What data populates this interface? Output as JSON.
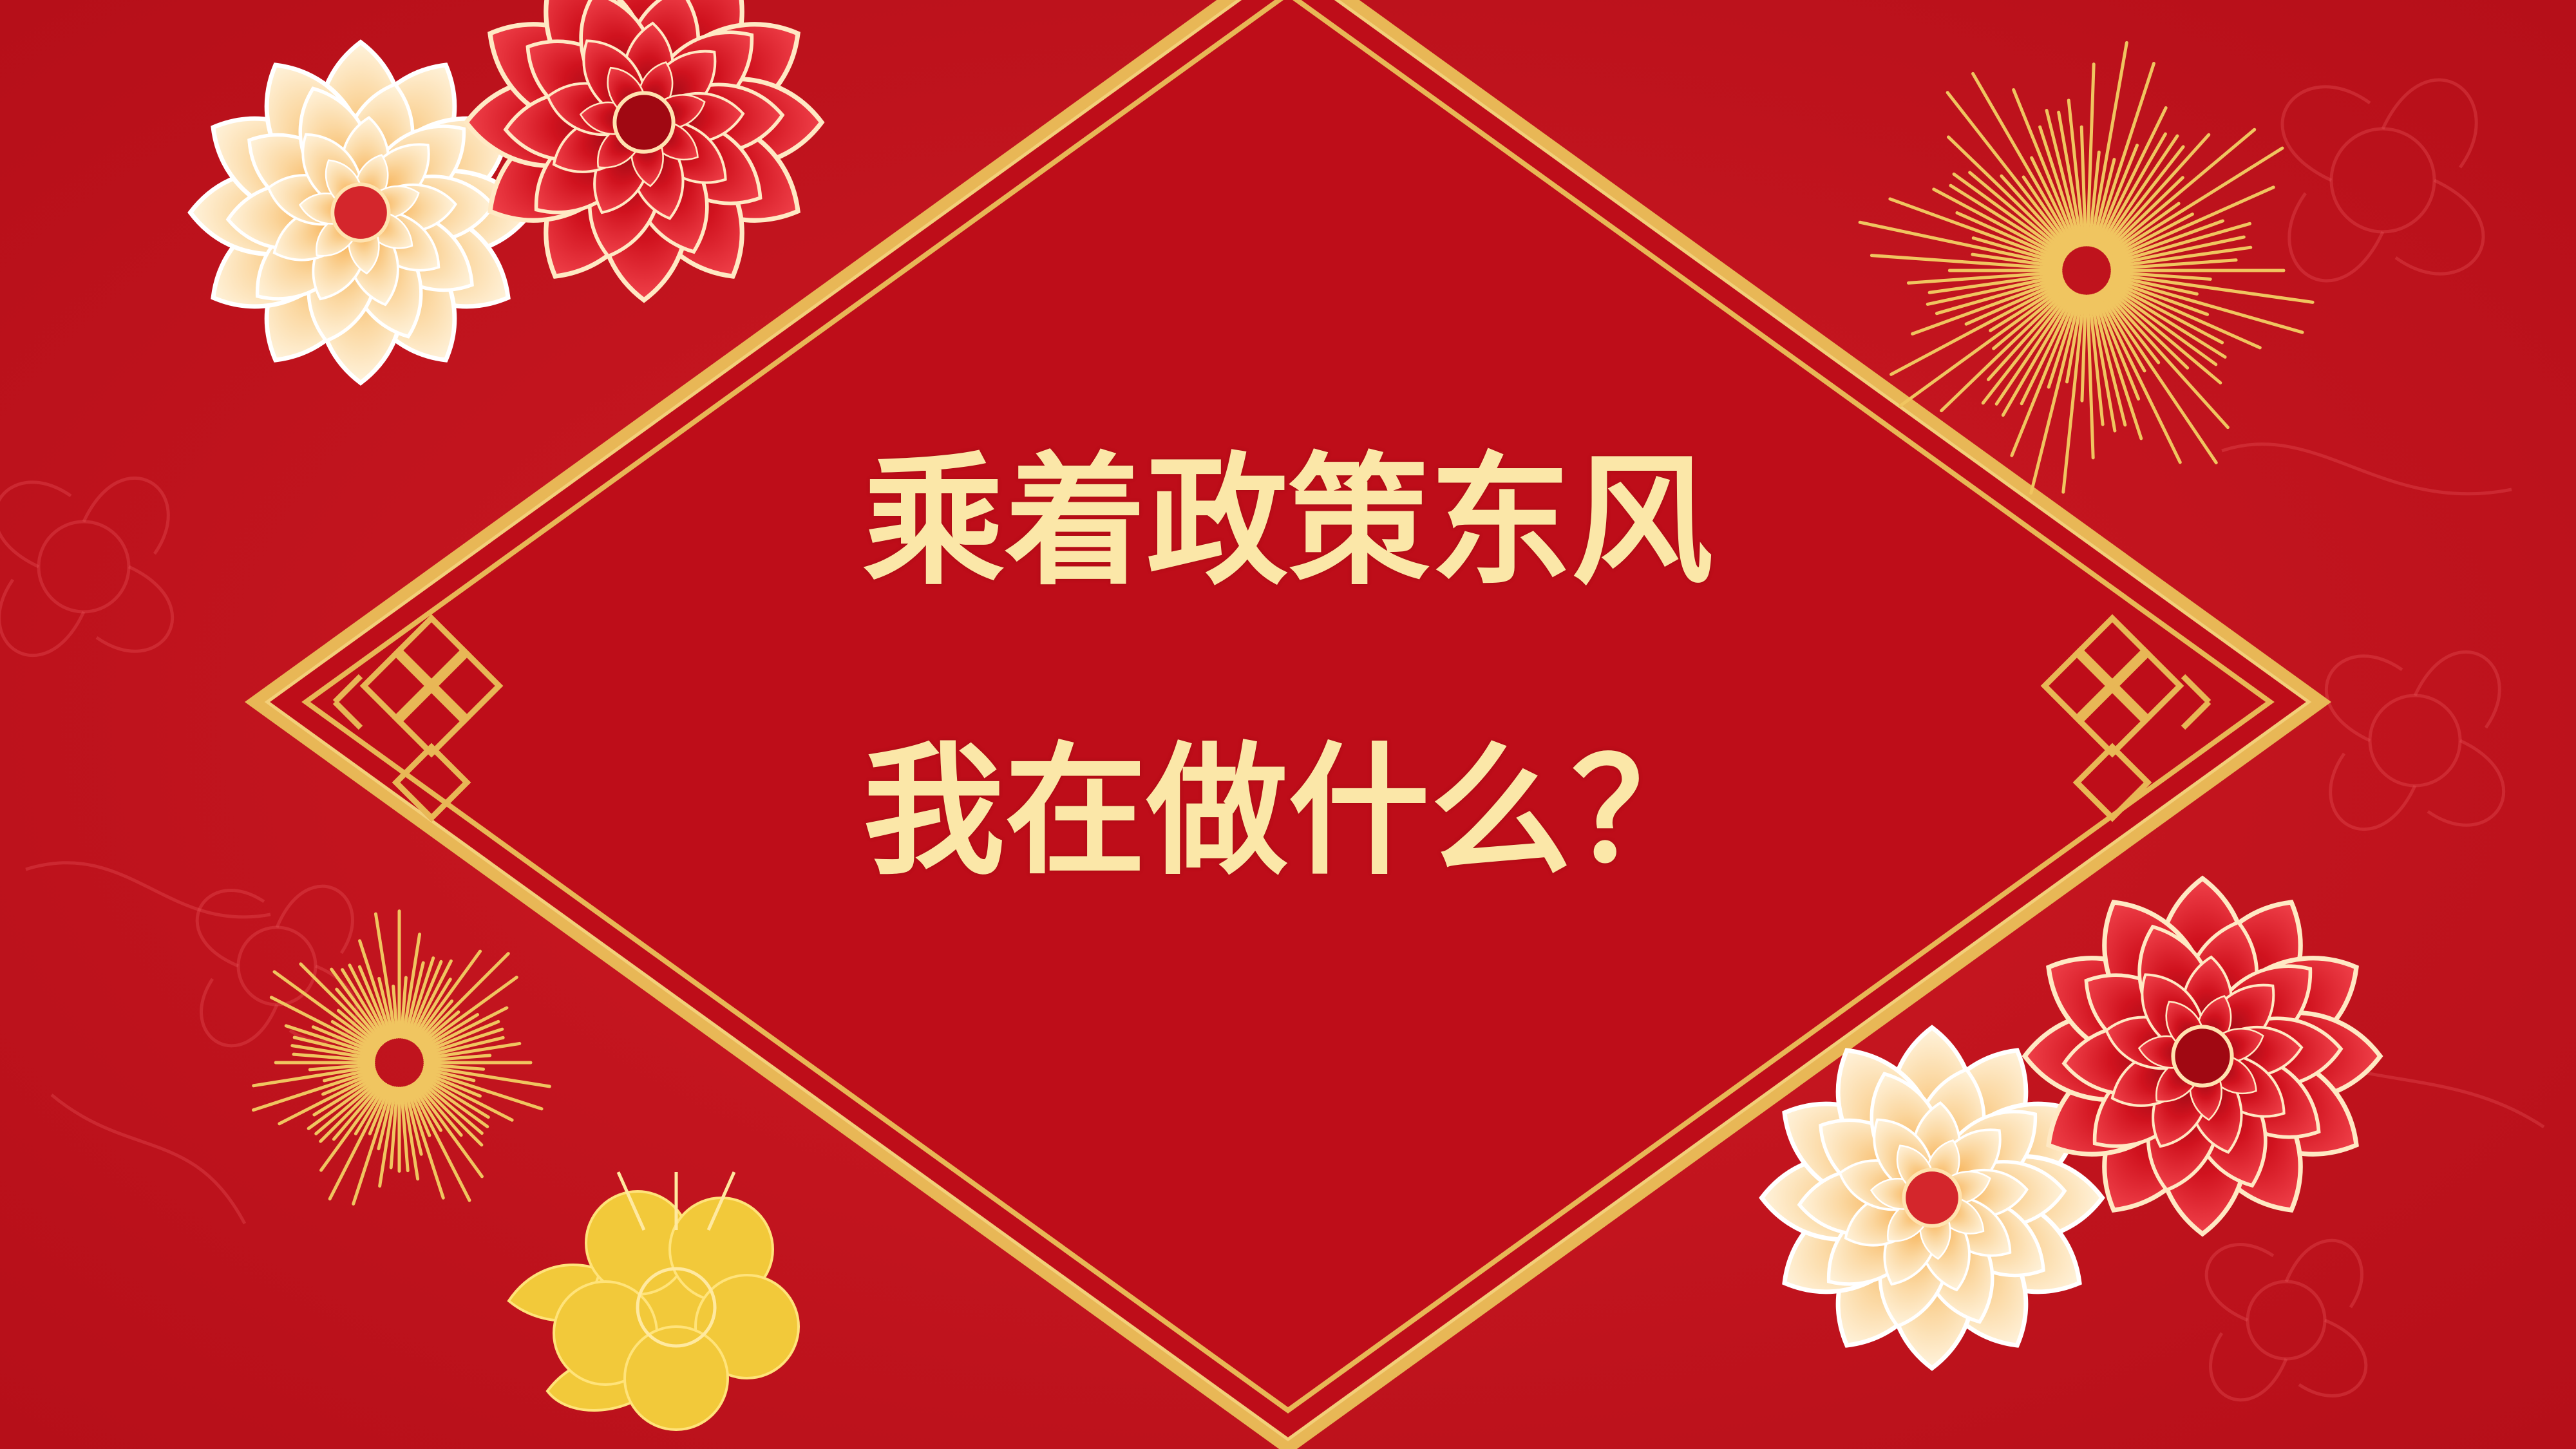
{
  "slide": {
    "title_line_1": "乘着政策东风",
    "title_line_2": "我在做什么？"
  },
  "colors": {
    "background": "#c3141e",
    "diamond": "#be0d19",
    "gold": "#e8b756",
    "title_text": "#fbe7a8",
    "peony_red": "#c8101c",
    "peony_cream": "#f8d69a"
  },
  "decorations": [
    "peony-cluster",
    "firework",
    "lattice-knot",
    "line-flower"
  ]
}
